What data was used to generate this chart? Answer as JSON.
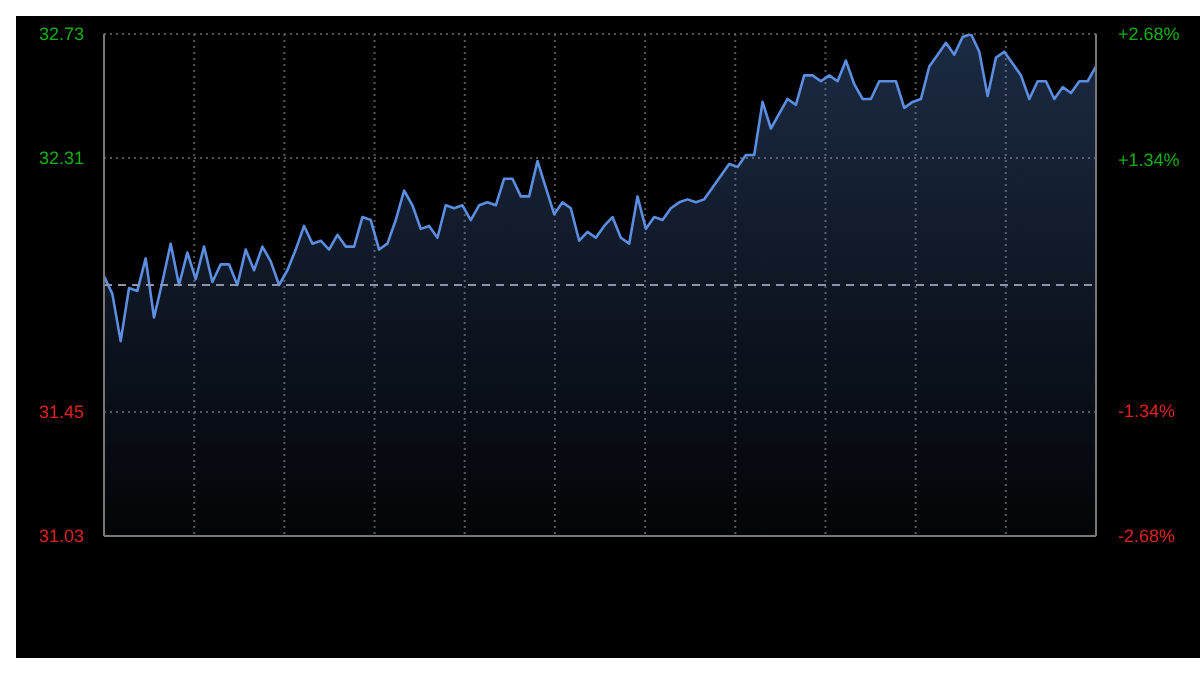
{
  "chart_data": {
    "type": "area",
    "categories": [
      null,
      null,
      null,
      null,
      null,
      null,
      null,
      null,
      null,
      null,
      null,
      null,
      null,
      null,
      null,
      null,
      null,
      null,
      null,
      null,
      null,
      null,
      null,
      null,
      null,
      null,
      null,
      null,
      null,
      null,
      null,
      null,
      null,
      null,
      null,
      null,
      null,
      null,
      null,
      null,
      null,
      null,
      null,
      null,
      null,
      null,
      null,
      null,
      null,
      null,
      null,
      null,
      null,
      null,
      null,
      null,
      null,
      null,
      null,
      null,
      null,
      null,
      null,
      null,
      null,
      null,
      null,
      null,
      null,
      null,
      null,
      null,
      null,
      null,
      null,
      null,
      null,
      null,
      null,
      null,
      null,
      null,
      null,
      null,
      null,
      null,
      null,
      null,
      null,
      null,
      null,
      null,
      null,
      null,
      null,
      null,
      null,
      null,
      null,
      null,
      null,
      null,
      null,
      null,
      null,
      null,
      null,
      null,
      null,
      null,
      null,
      null,
      null,
      null,
      null,
      null,
      null,
      null,
      null,
      null
    ],
    "series": [
      {
        "color": "#5b8de0",
        "values": [
          31.91,
          31.85,
          31.69,
          31.87,
          31.86,
          31.97,
          31.77,
          31.89,
          32.02,
          31.88,
          31.99,
          31.9,
          32.01,
          31.89,
          31.95,
          31.95,
          31.88,
          32.0,
          31.93,
          32.01,
          31.96,
          31.88,
          31.93,
          32.0,
          32.08,
          32.02,
          32.03,
          32.0,
          32.05,
          32.01,
          32.01,
          32.11,
          32.1,
          32.0,
          32.02,
          32.1,
          32.2,
          32.15,
          32.07,
          32.08,
          32.04,
          32.15,
          32.14,
          32.15,
          32.1,
          32.15,
          32.16,
          32.15,
          32.24,
          32.24,
          32.18,
          32.18,
          32.3,
          32.21,
          32.12,
          32.16,
          32.14,
          32.03,
          32.06,
          32.04,
          32.08,
          32.11,
          32.04,
          32.02,
          32.18,
          32.07,
          32.11,
          32.1,
          32.14,
          32.16,
          32.17,
          32.16,
          32.17,
          32.21,
          32.25,
          32.29,
          32.28,
          32.32,
          32.32,
          32.5,
          32.41,
          32.46,
          32.51,
          32.49,
          32.59,
          32.59,
          32.57,
          32.59,
          32.57,
          32.64,
          32.56,
          32.51,
          32.51,
          32.57,
          32.57,
          32.57,
          32.48,
          32.5,
          32.51,
          32.62,
          32.66,
          32.7,
          32.66,
          32.72,
          32.73,
          32.67,
          32.52,
          32.65,
          32.67,
          32.63,
          32.59,
          32.51,
          32.57,
          32.57,
          32.51,
          32.55,
          32.53,
          32.57,
          32.57,
          32.62
        ]
      }
    ],
    "ylim": [
      31.03,
      32.73
    ],
    "yticks": [
      31.03,
      31.45,
      32.31,
      32.73
    ],
    "y2lim": [
      -2.68,
      2.68
    ],
    "y2ticks": [
      {
        "value": -2.68,
        "label": "-2.68%"
      },
      {
        "value": -1.34,
        "label": "-1.34%"
      },
      {
        "value": 1.34,
        "label": "+1.34%"
      },
      {
        "value": 2.68,
        "label": "+2.68%"
      }
    ],
    "ref_lines": [
      {
        "axis": "y",
        "value": 31.88,
        "line_style": "dashed",
        "color": "#8a96a8"
      }
    ],
    "grid": true,
    "marker": "none",
    "line_style": "solid"
  }
}
